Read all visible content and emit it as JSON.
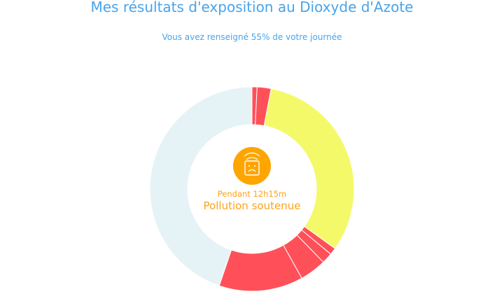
{
  "header": {
    "title": "Mes résultats d'exposition au Dioxyde d'Azote",
    "subtitle": "Vous avez renseigné 55% de votre journée"
  },
  "center": {
    "icon": "sad-air-sensor-icon",
    "duration": "Pendant 12h15m",
    "status": "Pollution soutenue",
    "accent_color": "#ffa500"
  },
  "chart_data": {
    "type": "pie",
    "variant": "donut",
    "start": "top, clockwise",
    "values": [
      0.8,
      2.2,
      31.9,
      1.1,
      1.7,
      4.2,
      13.3,
      44.8
    ],
    "colors": [
      "#ff5059",
      "#ff5059",
      "#f4f96a",
      "#ff5059",
      "#ff5059",
      "#ff5059",
      "#ff5059",
      "#e6f3f6"
    ],
    "legend": "none"
  }
}
